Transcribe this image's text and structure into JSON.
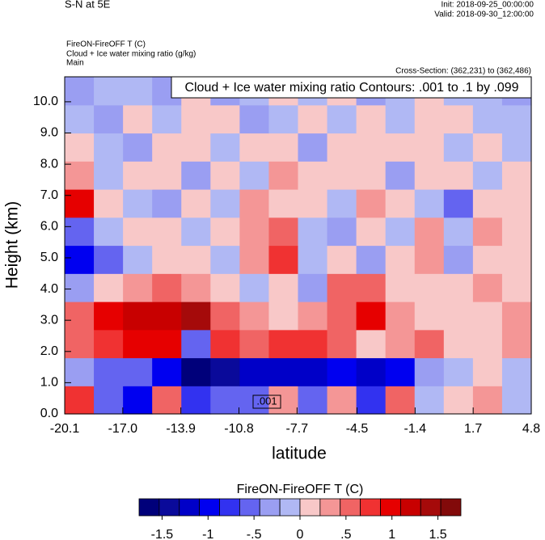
{
  "chart_data": {
    "type": "contourf",
    "title": "S-N at 5E",
    "init": "Init: 2018-09-25_00:00:00",
    "valid": "Valid: 2018-09-30_12:00:00",
    "field_label": "FireON-FireOFF T   (C)",
    "contour_label": "Cloud + Ice water mixing ratio   (g/kg)",
    "domain": "Main",
    "cross_section": "Cross-Section: (362,231) to (362,486)",
    "annotation": "Cloud + Ice water mixing ratio Contours: .001 to .1 by .099",
    "contour_value_label": ".001",
    "xlabel": "latitude",
    "ylabel": "Height (km)",
    "xlim": [
      -20.1,
      4.8
    ],
    "ylim": [
      0,
      10.8
    ],
    "xticks": [
      -20.1,
      {
        "value": -17,
        "label": "-17.0"
      },
      -13.9,
      -10.8,
      -7.7,
      -4.5,
      -1.4,
      1.7,
      4.8
    ],
    "yticks": [
      {
        "value": 0,
        "label": "0.0"
      },
      {
        "value": 1,
        "label": "1.0"
      },
      {
        "value": 2,
        "label": "2.0"
      },
      {
        "value": 3,
        "label": "3.0"
      },
      {
        "value": 4,
        "label": "4.0"
      },
      {
        "value": 5,
        "label": "5.0"
      },
      {
        "value": 6,
        "label": "6.0"
      },
      {
        "value": 7,
        "label": "7.0"
      },
      {
        "value": 8,
        "label": "8.0"
      },
      {
        "value": 9,
        "label": "9.0"
      },
      {
        "value": 10,
        "label": "10.0"
      }
    ],
    "z": [
      [
        0.8,
        -0.6,
        -1,
        0.5,
        -0.8,
        -0.5,
        -0.6,
        0.4,
        -0.5,
        0.3,
        -0.7,
        0.6,
        -0.2,
        0.2,
        0.3,
        -0.1
      ],
      [
        -0.3,
        -0.5,
        -0.6,
        -1,
        -1.6,
        -1.4,
        -1.2,
        -1.1,
        -1.3,
        -1,
        -1.2,
        -0.9,
        -0.3,
        -0.2,
        0.2,
        -0.1
      ],
      [
        0.5,
        0.7,
        0.9,
        1,
        -0.5,
        0.8,
        0.6,
        0.7,
        0.8,
        0.5,
        0.2,
        0.3,
        0.6,
        0.2,
        0.2,
        0.3
      ],
      [
        0.6,
        1,
        1.1,
        1.3,
        1.4,
        0.5,
        0.3,
        0.2,
        0.4,
        0.6,
        0.9,
        0.3,
        0.2,
        0.1,
        0.2,
        0.3
      ],
      [
        -0.3,
        0.2,
        0.4,
        0.5,
        0.3,
        0.2,
        -0.2,
        0.2,
        -0.3,
        0.6,
        0.5,
        0.1,
        0.2,
        0.2,
        0.3,
        0.2
      ],
      [
        -1,
        -0.6,
        -0.2,
        0.2,
        0.1,
        -0.2,
        0.3,
        0.8,
        -0.2,
        0.1,
        -0.3,
        0.2,
        0.3,
        -0.3,
        0.2,
        0.1
      ],
      [
        -0.5,
        -0.2,
        0.2,
        0.2,
        -0.2,
        0.2,
        0.3,
        0.6,
        -0.2,
        -0.3,
        0.2,
        -0.2,
        0.3,
        -0.2,
        0.3,
        0.1
      ],
      [
        0.9,
        0.2,
        -0.2,
        -0.3,
        0.2,
        -0.2,
        0.4,
        0.2,
        0.2,
        -0.2,
        0.3,
        0.2,
        -0.2,
        -0.5,
        0.2,
        0.2
      ],
      [
        0.3,
        -0.2,
        0.2,
        0.2,
        -0.3,
        0.2,
        -0.2,
        0.3,
        0.2,
        0.2,
        0.2,
        -0.3,
        0.2,
        0.2,
        -0.2,
        0.1
      ],
      [
        0.2,
        -0.2,
        -0.3,
        0.2,
        0.2,
        -0.2,
        0.2,
        0.2,
        -0.3,
        0.2,
        0.2,
        0.2,
        0.2,
        -0.2,
        0.2,
        -0.2
      ],
      [
        -0.2,
        -0.3,
        0.2,
        -0.2,
        0.2,
        0.2,
        -0.3,
        -0.2,
        0.2,
        -0.2,
        0.2,
        -0.2,
        0.2,
        0.2,
        -0.2,
        -0.2
      ],
      [
        -0.3,
        -0.2,
        -0.2,
        -0.3,
        0.2,
        -0.3,
        -0.2,
        0.2,
        -0.2,
        0.2,
        -0.3,
        -0.2,
        0.2,
        -0.2,
        -0.2,
        -0.3
      ]
    ],
    "colorbar": {
      "title": "FireON-FireOFF T  (C)",
      "lim": [
        -1.75,
        1.75
      ],
      "colors": [
        "#00007a",
        "#0a0a9a",
        "#0000c8",
        "#0000f0",
        "#3232f0",
        "#6464f0",
        "#9a9ef2",
        "#b0b8f4",
        "#f8c8c8",
        "#f49696",
        "#f06464",
        "#f03232",
        "#e60000",
        "#c80000",
        "#a50a0a",
        "#820a0a"
      ],
      "ticks": [
        -1.5,
        -1,
        {
          "value": -0.5,
          "label": "-.5"
        },
        0,
        {
          "value": 0.5,
          "label": ".5"
        },
        1,
        1.5
      ]
    }
  }
}
